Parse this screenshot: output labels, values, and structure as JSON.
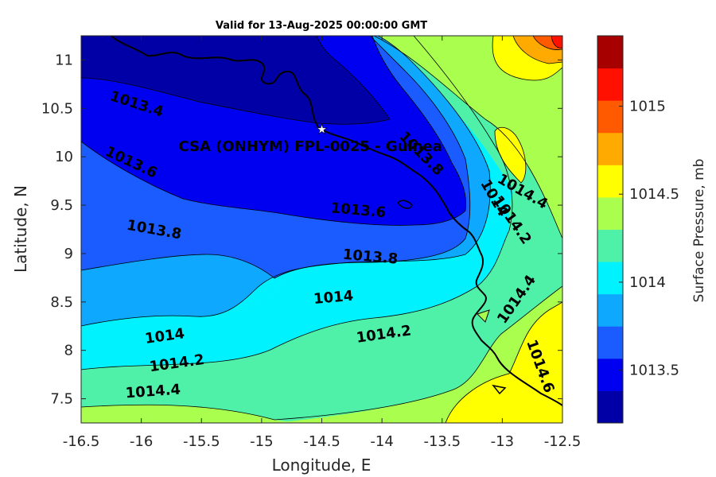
{
  "chart_data": {
    "type": "contour-map",
    "title": "Valid for 13-Aug-2025 00:00:00 GMT",
    "xlabel": "Longitude, E",
    "ylabel": "Latitude, N",
    "xlim": [
      -16.5,
      -12.5
    ],
    "ylim": [
      7.25,
      11.25
    ],
    "xticks": [
      "-16.5",
      "-16",
      "-15.5",
      "-15",
      "-14.5",
      "-14",
      "-13.5",
      "-13",
      "-12.5"
    ],
    "yticks": [
      "7.5",
      "8",
      "8.5",
      "9",
      "9.5",
      "10",
      "10.5",
      "11"
    ],
    "station": {
      "label": "CSA (ONHYM) FPL-0025 - Guinea",
      "lon": -14.5,
      "lat": 10.28
    },
    "contour_labels": [
      {
        "text": "1013.4",
        "lon": -16.05,
        "lat": 10.5,
        "rot": 18
      },
      {
        "text": "1013.6",
        "lon": -16.1,
        "lat": 9.9,
        "rot": 25
      },
      {
        "text": "1013.8",
        "lon": -15.9,
        "lat": 9.2,
        "rot": 10
      },
      {
        "text": "1013.6",
        "lon": -14.2,
        "lat": 9.4,
        "rot": 5
      },
      {
        "text": "1013.8",
        "lon": -14.1,
        "lat": 8.92,
        "rot": 5
      },
      {
        "text": "1014",
        "lon": -14.4,
        "lat": 8.5,
        "rot": -5
      },
      {
        "text": "1014",
        "lon": -15.8,
        "lat": 8.1,
        "rot": -8
      },
      {
        "text": "1014.2",
        "lon": -15.7,
        "lat": 7.82,
        "rot": -8
      },
      {
        "text": "1014.2",
        "lon": -13.98,
        "lat": 8.12,
        "rot": -8
      },
      {
        "text": "1014.4",
        "lon": -15.9,
        "lat": 7.53,
        "rot": -4
      },
      {
        "text": "1014.4",
        "lon": -12.85,
        "lat": 9.6,
        "rot": 30
      },
      {
        "text": "1014.2",
        "lon": -12.95,
        "lat": 9.32,
        "rot": 55
      },
      {
        "text": "1014",
        "lon": -13.1,
        "lat": 9.55,
        "rot": 60
      },
      {
        "text": "1013.8",
        "lon": -13.7,
        "lat": 10.0,
        "rot": 45
      },
      {
        "text": "1014.4",
        "lon": -12.85,
        "lat": 8.5,
        "rot": -55
      },
      {
        "text": "1014.6",
        "lon": -12.72,
        "lat": 7.82,
        "rot": 70
      }
    ],
    "colorbar": {
      "label": "Surface Pressure, mb",
      "ticks": [
        "1013.5",
        "1014",
        "1014.5",
        "1015"
      ],
      "tick_values": [
        1013.5,
        1014,
        1014.5,
        1015
      ],
      "range": [
        1013.2,
        1015.4
      ],
      "colors": [
        "#0000a6",
        "#0000f0",
        "#1a5cff",
        "#0fa8ff",
        "#00f2ff",
        "#4ff0a8",
        "#aaff4e",
        "#ffff00",
        "#ffaa00",
        "#ff5a00",
        "#ff1000",
        "#a60000"
      ]
    }
  }
}
